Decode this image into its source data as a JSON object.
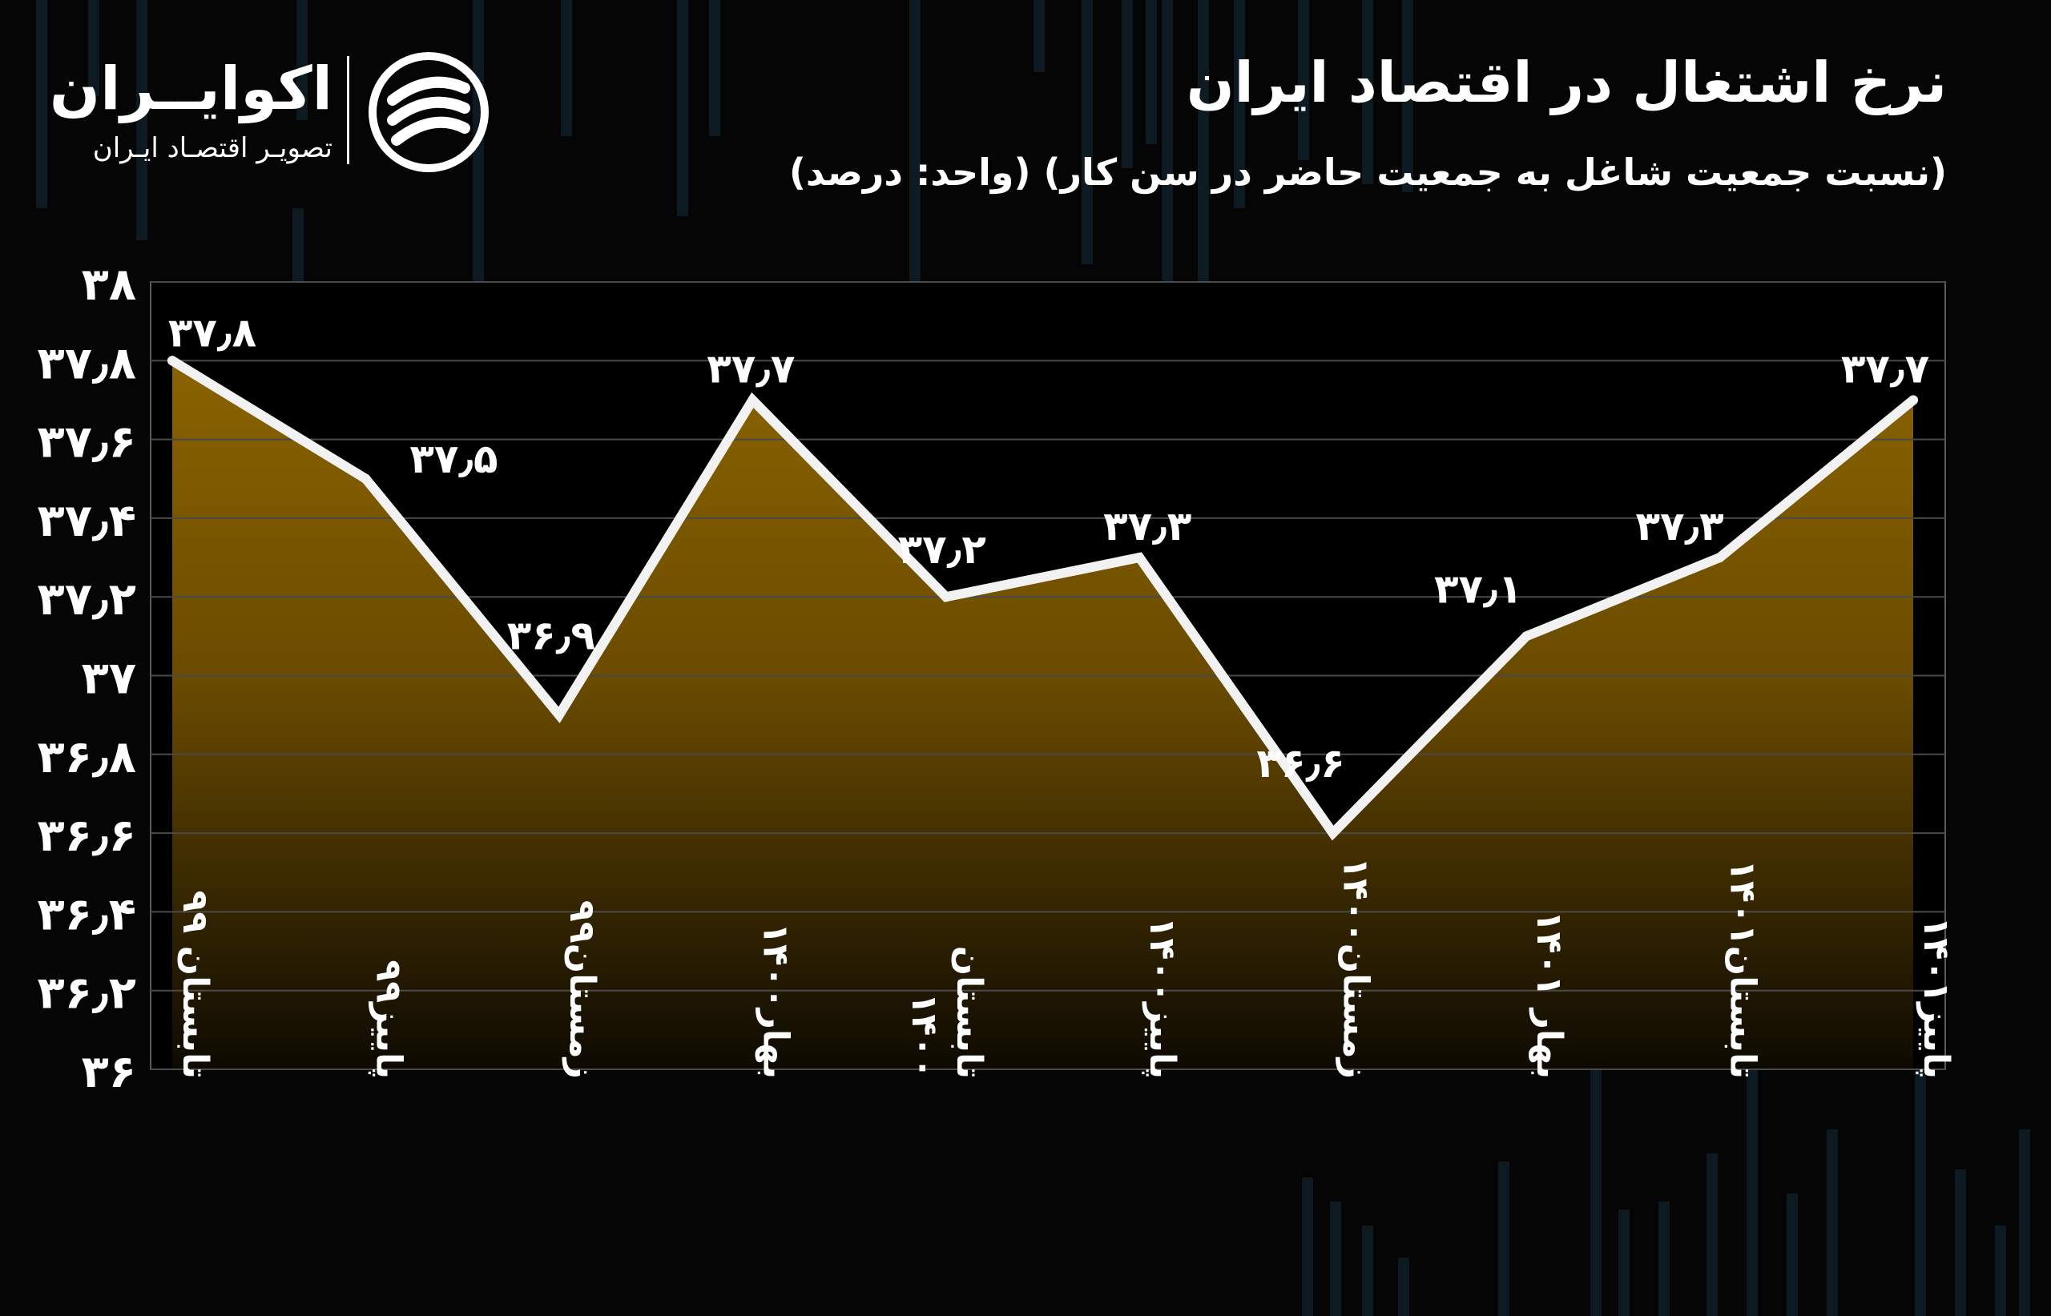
{
  "header": {
    "title": "نرخ اشتغال در اقتصاد ایران",
    "subtitle": "(نسبت جمعیت شاغل به جمعیت حاضر در سن کار) (واحد: درصد)"
  },
  "logo": {
    "name": "اکوایــران",
    "tagline": "تصویـر اقتصـاد ایـران"
  },
  "colors": {
    "area_top": "#8a6300",
    "area_bottom": "#0e0a02",
    "line": "#f2f2f2",
    "grid": "#4a4a4a",
    "background": "#050505"
  },
  "chart_data": {
    "type": "area",
    "title": "نرخ اشتغال در اقتصاد ایران",
    "subtitle": "(نسبت جمعیت شاغل به جمعیت حاضر در سن کار) (واحد: درصد)",
    "ylim": [
      36,
      38
    ],
    "grid": true,
    "y_ticks": [
      {
        "value": 38,
        "label": "۳۸"
      },
      {
        "value": 37.8,
        "label": "۳۷٫۸"
      },
      {
        "value": 37.6,
        "label": "۳۷٫۶"
      },
      {
        "value": 37.4,
        "label": "۳۷٫۴"
      },
      {
        "value": 37.2,
        "label": "۳۷٫۲"
      },
      {
        "value": 37,
        "label": "۳۷"
      },
      {
        "value": 36.8,
        "label": "۳۶٫۸"
      },
      {
        "value": 36.6,
        "label": "۳۶٫۶"
      },
      {
        "value": 36.4,
        "label": "۳۶٫۴"
      },
      {
        "value": 36.2,
        "label": "۳۶٫۲"
      },
      {
        "value": 36,
        "label": "۳۶"
      }
    ],
    "categories": [
      [
        "تابستان ۹۹"
      ],
      [
        "پاییز۹۹"
      ],
      [
        "زمستان۹۹"
      ],
      [
        "بهار۱۴۰۰"
      ],
      [
        "تابستان",
        "۱۴۰۰"
      ],
      [
        "پاییز۱۴۰۰"
      ],
      [
        "زمستان۱۴۰۰"
      ],
      [
        "بهار ۱۴۰۱"
      ],
      [
        "تابستان۱۴۰۱"
      ],
      [
        "پاییز۱۴۰۱"
      ]
    ],
    "values": [
      37.8,
      37.5,
      36.9,
      37.7,
      37.2,
      37.3,
      36.6,
      37.1,
      37.3,
      37.7
    ],
    "data_labels": [
      "۳۷٫۸",
      "۳۷٫۵",
      "۳۶٫۹",
      "۳۷٫۷",
      "۳۷٫۲",
      "۳۷٫۳",
      "۳۶٫۶",
      "۳۷٫۱",
      "۳۷٫۳",
      "۳۷٫۷"
    ]
  }
}
